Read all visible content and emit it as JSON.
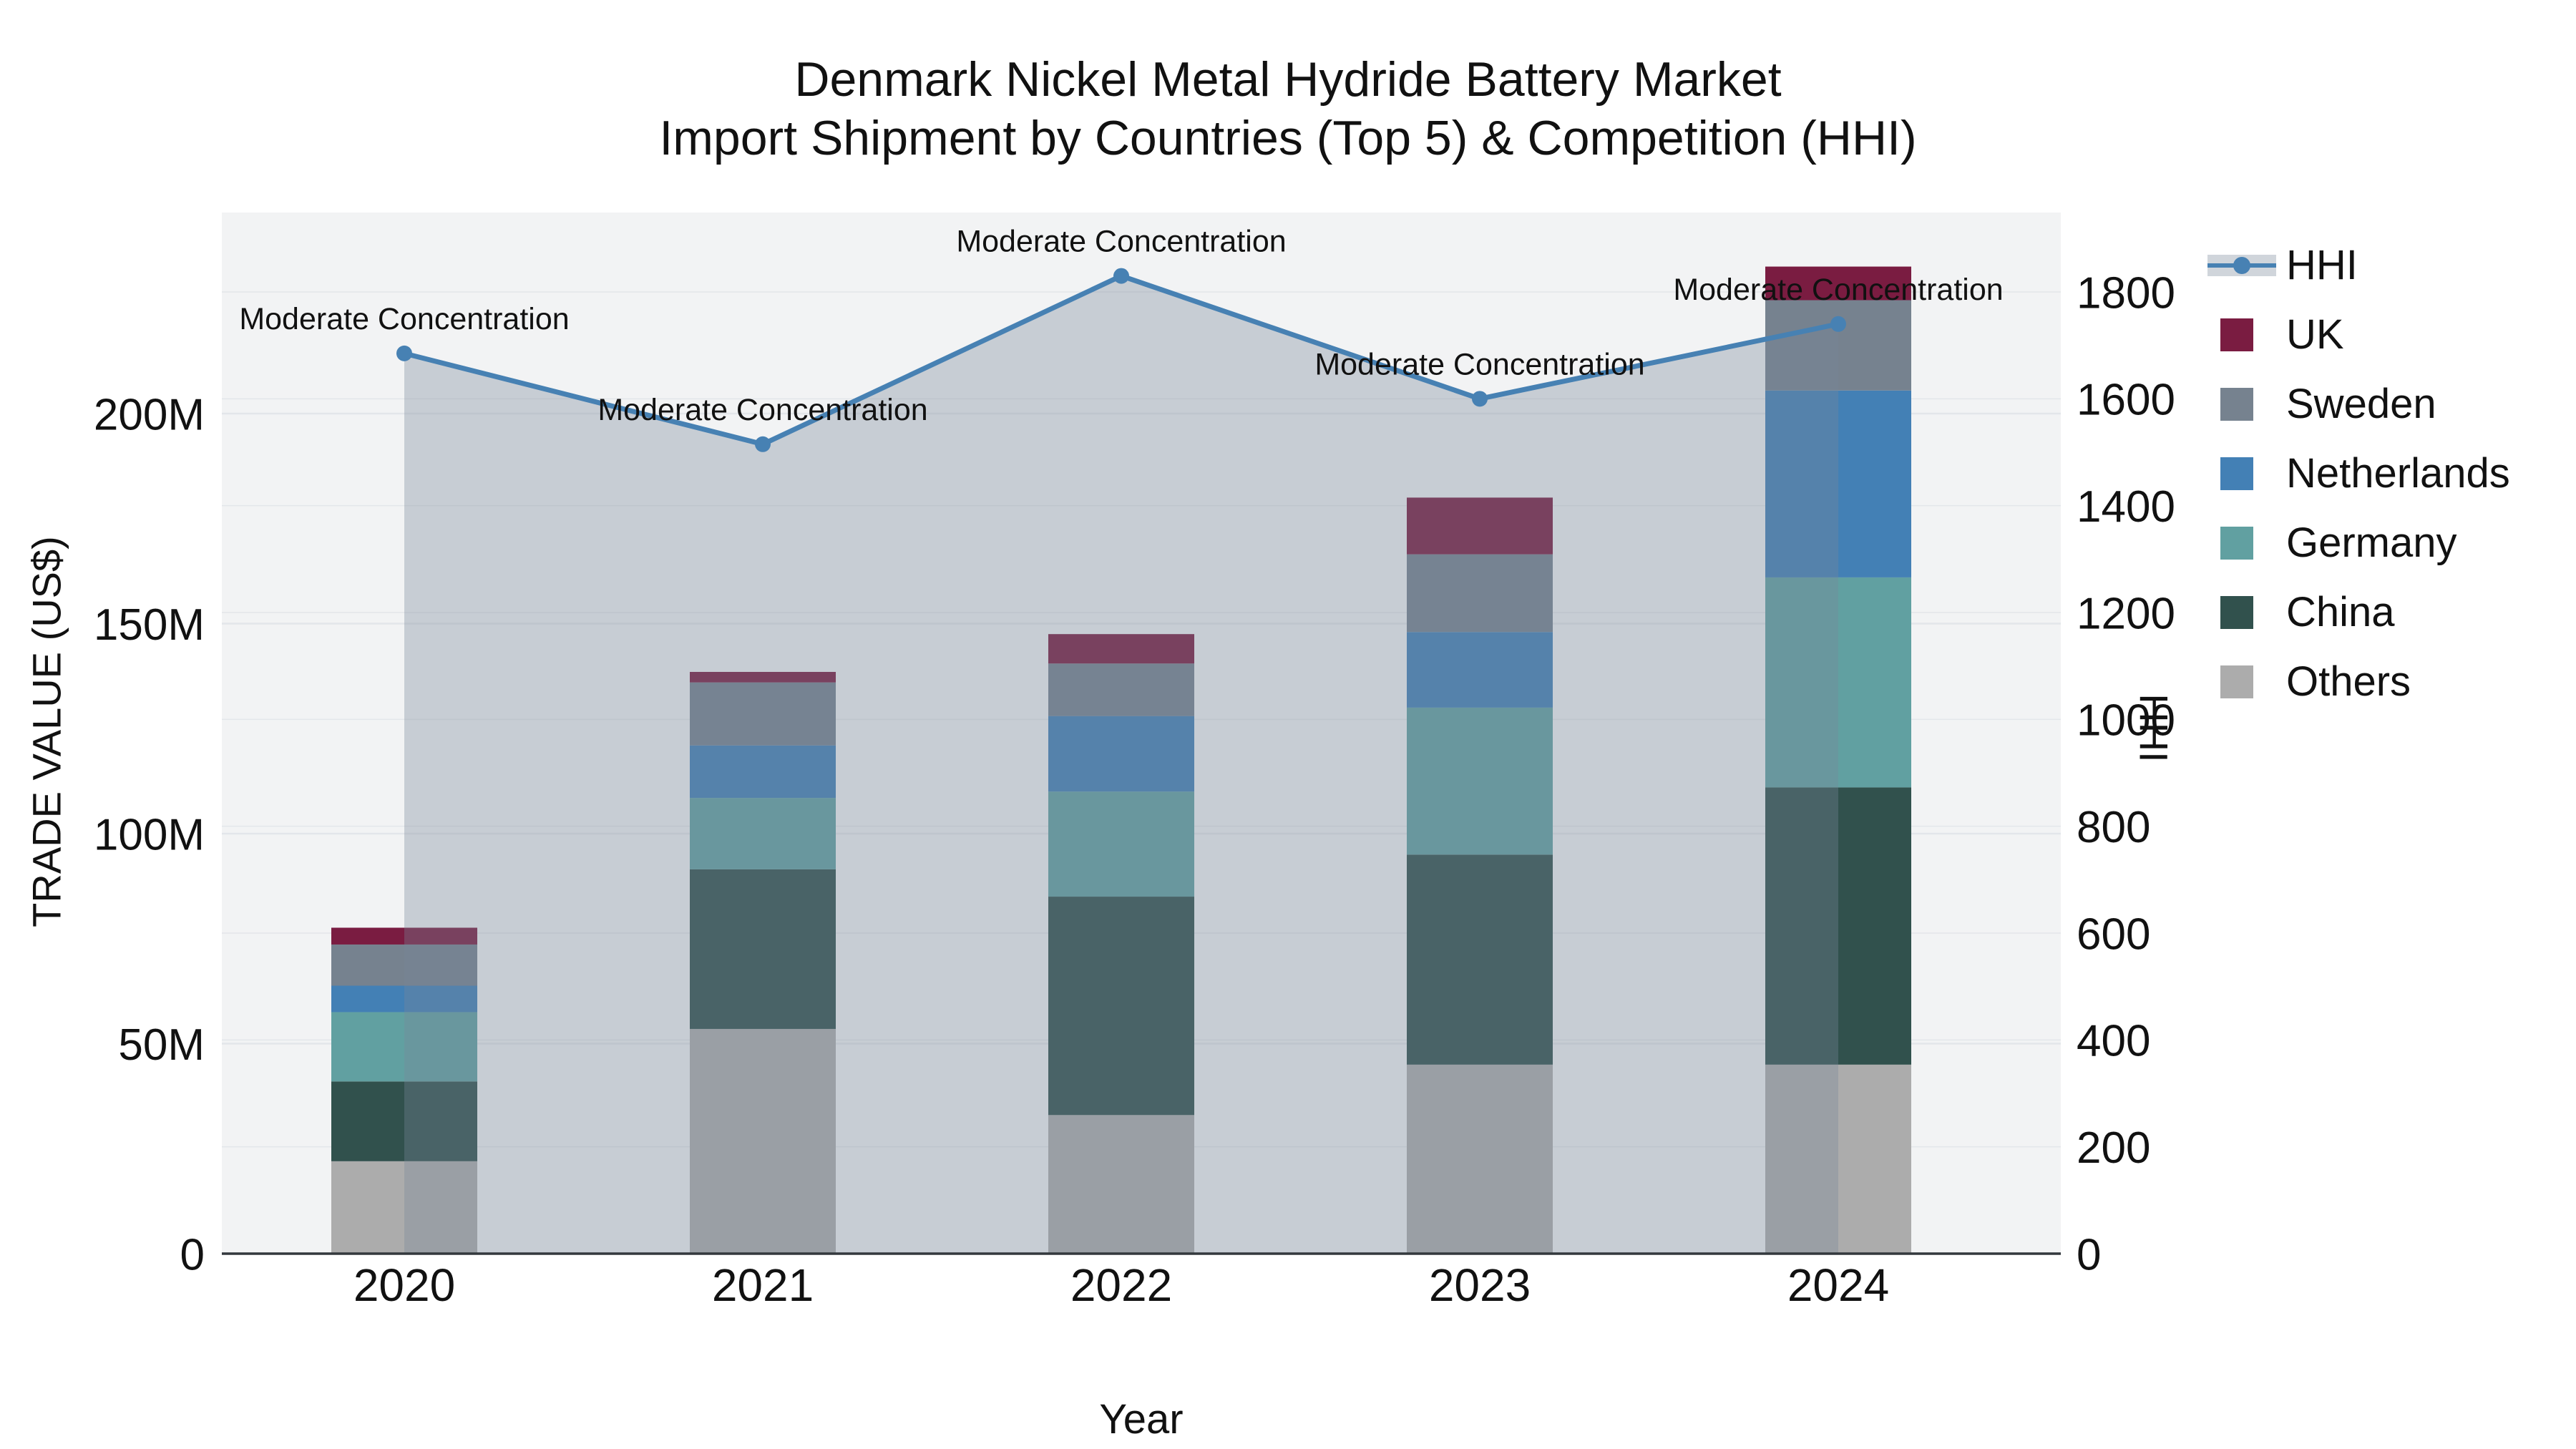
{
  "title": {
    "line1": "Denmark Nickel Metal Hydride Battery Market",
    "line2": "Import Shipment by Countries (Top 5) & Competition (HHI)"
  },
  "axes": {
    "x": {
      "title": "Year",
      "ticks": [
        "2020",
        "2021",
        "2022",
        "2023",
        "2024"
      ]
    },
    "y_left": {
      "title": "TRADE VALUE (US$)",
      "ticks": [
        {
          "v": 0,
          "label": "0"
        },
        {
          "v": 50,
          "label": "50M"
        },
        {
          "v": 100,
          "label": "100M"
        },
        {
          "v": 150,
          "label": "150M"
        },
        {
          "v": 200,
          "label": "200M"
        }
      ]
    },
    "y_right": {
      "title": "HHI",
      "ticks": [
        {
          "v": 0,
          "label": "0"
        },
        {
          "v": 200,
          "label": "200"
        },
        {
          "v": 400,
          "label": "400"
        },
        {
          "v": 600,
          "label": "600"
        },
        {
          "v": 800,
          "label": "800"
        },
        {
          "v": 1000,
          "label": "1000"
        },
        {
          "v": 1200,
          "label": "1200"
        },
        {
          "v": 1400,
          "label": "1400"
        },
        {
          "v": 1600,
          "label": "1600"
        },
        {
          "v": 1800,
          "label": "1800"
        }
      ]
    }
  },
  "legend": {
    "items": [
      {
        "label": "HHI",
        "key": "HHI",
        "kind": "line"
      },
      {
        "label": "UK",
        "key": "UK",
        "kind": "square"
      },
      {
        "label": "Sweden",
        "key": "Sweden",
        "kind": "square"
      },
      {
        "label": "Netherlands",
        "key": "Netherlands",
        "kind": "square"
      },
      {
        "label": "Germany",
        "key": "Germany",
        "kind": "square"
      },
      {
        "label": "China",
        "key": "China",
        "kind": "square"
      },
      {
        "label": "Others",
        "key": "Others",
        "kind": "square"
      }
    ]
  },
  "annotations": [
    {
      "year": "2020",
      "text": "Moderate Concentration"
    },
    {
      "year": "2021",
      "text": "Moderate Concentration"
    },
    {
      "year": "2022",
      "text": "Moderate Concentration"
    },
    {
      "year": "2023",
      "text": "Moderate Concentration"
    },
    {
      "year": "2024",
      "text": "Moderate Concentration"
    }
  ],
  "chart_data": {
    "type": "bar",
    "subtype": "stacked-bar-with-line",
    "title": "Denmark Nickel Metal Hydride Battery Market — Import Shipment by Countries (Top 5) & Competition (HHI)",
    "categories": [
      "2020",
      "2021",
      "2022",
      "2023",
      "2024"
    ],
    "value_unit": "millions USD",
    "series": [
      {
        "name": "Others",
        "values": [
          22.0,
          53.5,
          33.0,
          45.0,
          45.0
        ]
      },
      {
        "name": "China",
        "values": [
          19.0,
          38.0,
          52.0,
          50.0,
          66.0
        ]
      },
      {
        "name": "Germany",
        "values": [
          16.5,
          17.0,
          25.0,
          35.0,
          50.0
        ]
      },
      {
        "name": "Netherlands",
        "values": [
          6.3,
          12.5,
          18.0,
          18.0,
          44.5
        ]
      },
      {
        "name": "Sweden",
        "values": [
          9.8,
          15.0,
          12.5,
          18.5,
          21.5
        ]
      },
      {
        "name": "UK",
        "values": [
          4.0,
          2.5,
          7.0,
          13.5,
          8.0
        ]
      }
    ],
    "bar_totals": [
      77.6,
      138.5,
      147.5,
      180.0,
      235.0
    ],
    "hhi_series": {
      "name": "HHI",
      "values": [
        1685,
        1515,
        1830,
        1600,
        1740
      ],
      "axis": "right"
    },
    "xlabel": "Year",
    "ylabel_left": "TRADE VALUE (US$)",
    "ylabel_right": "HHI",
    "ylim_left": [
      0,
      248
    ],
    "ylim_right": [
      0,
      1950
    ],
    "grid": true,
    "legend_position": "right",
    "colors": {
      "HHI": "#4781b3",
      "UK": "#7a1c41",
      "Sweden": "#76828f",
      "Netherlands": "#4380b5",
      "Germany": "#61a0a1",
      "China": "#31514d",
      "Others": "#acacac",
      "area_fill": "rgba(119,136,153,0.35)",
      "plot_bg": "#f2f3f4",
      "gridline": "#e3e6ea",
      "axis_line": "#33383d"
    }
  }
}
